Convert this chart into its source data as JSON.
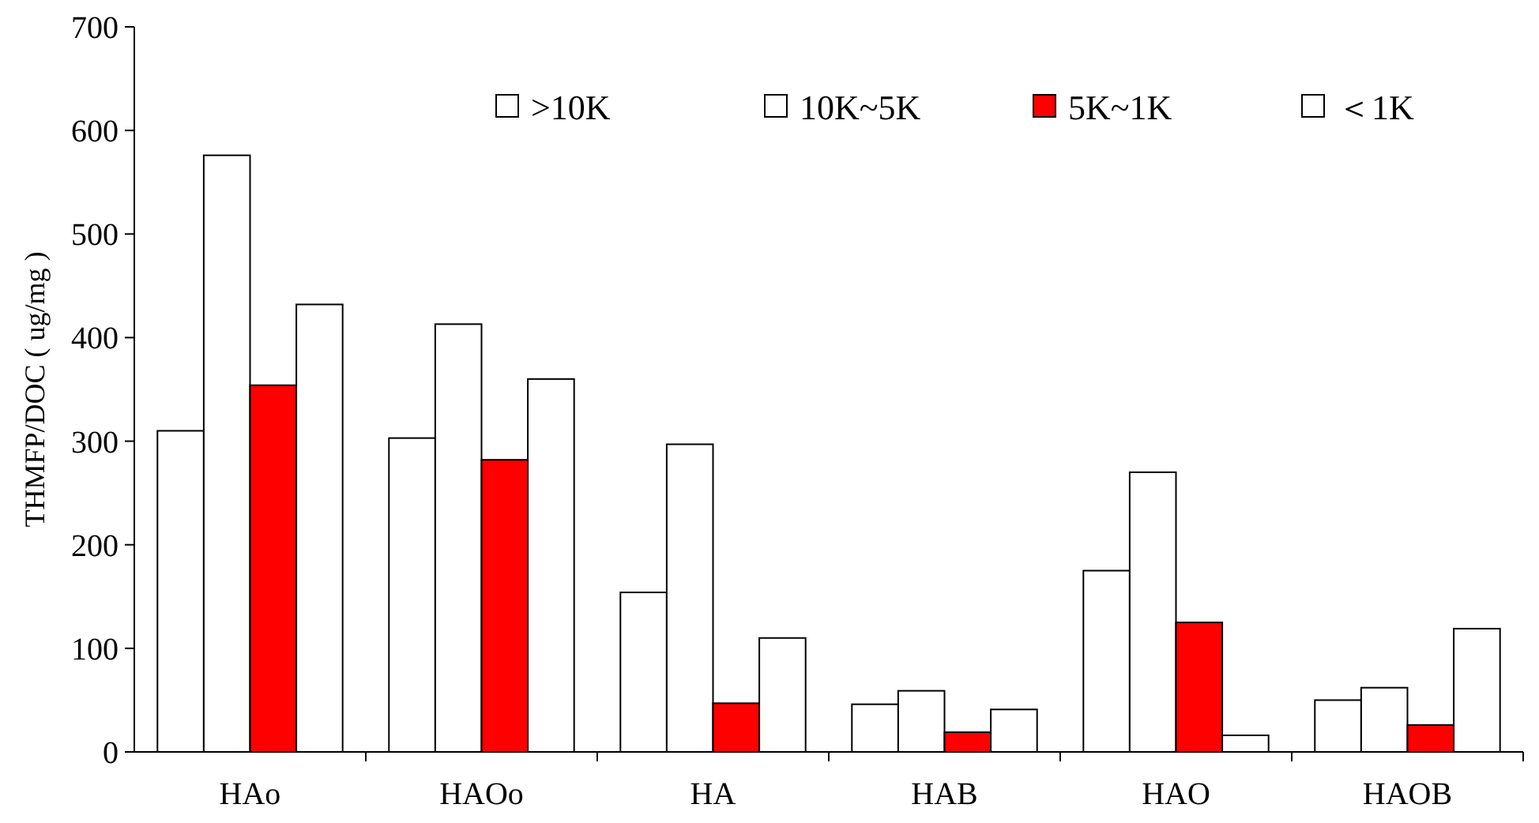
{
  "chart_data": {
    "type": "bar",
    "ylabel": "THMFP/DOC ( ug/mg )",
    "categories": [
      "HAo",
      "HAOo",
      "HA",
      "HAB",
      "HAO",
      "HAOB"
    ],
    "series": [
      {
        "name": ">10K",
        "color": "#ffffff",
        "values": [
          310,
          303,
          154,
          46,
          175,
          50
        ]
      },
      {
        "name": "10K~5K",
        "color": "#ffffff",
        "values": [
          576,
          413,
          297,
          59,
          270,
          62
        ]
      },
      {
        "name": "5K~1K",
        "color": "#ff0000",
        "values": [
          354,
          282,
          47,
          19,
          125,
          26
        ]
      },
      {
        "name": "＜1K",
        "color": "#ffffff",
        "values": [
          432,
          360,
          110,
          41,
          16,
          119
        ]
      }
    ],
    "ylim": [
      0,
      700
    ],
    "yticks": [
      0,
      100,
      200,
      300,
      400,
      500,
      600,
      700
    ],
    "grid": false,
    "legend": "top right"
  }
}
